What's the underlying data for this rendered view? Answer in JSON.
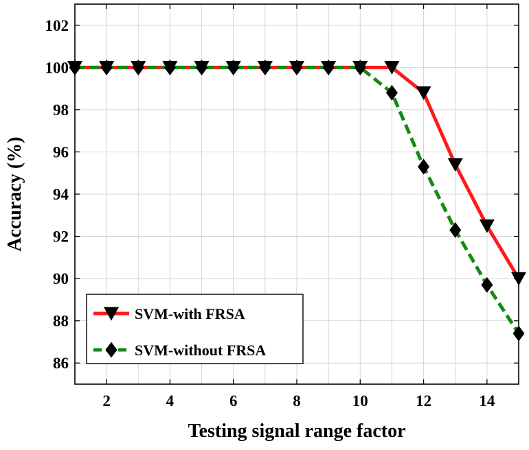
{
  "chart_data": {
    "type": "line",
    "title": "",
    "xlabel": "Testing signal range factor",
    "ylabel": "Accuracy (%)",
    "xlim": [
      1,
      15
    ],
    "ylim": [
      85,
      103
    ],
    "xticks": [
      2,
      4,
      6,
      8,
      10,
      12,
      14
    ],
    "yticks": [
      86,
      88,
      90,
      92,
      94,
      96,
      98,
      100,
      102
    ],
    "xtick_labels": [
      "2",
      "4",
      "6",
      "8",
      "10",
      "12",
      "14"
    ],
    "ytick_labels": [
      "86",
      "88",
      "90",
      "92",
      "94",
      "96",
      "98",
      "100",
      "102"
    ],
    "grid": true,
    "x": [
      1,
      2,
      3,
      4,
      5,
      6,
      7,
      8,
      9,
      10,
      11,
      12,
      13,
      14,
      15
    ],
    "series": [
      {
        "name": "SVM-with FRSA",
        "color": "#ff1a1a",
        "line_style": "solid",
        "marker": "triangle-down",
        "values": [
          100,
          100,
          100,
          100,
          100,
          100,
          100,
          100,
          100,
          100,
          100,
          98.8,
          95.4,
          92.5,
          90.0
        ]
      },
      {
        "name": "SVM-without FRSA",
        "color": "#138a13",
        "line_style": "dashed",
        "marker": "diamond",
        "values": [
          100,
          100,
          100,
          100,
          100,
          100,
          100,
          100,
          100,
          100,
          98.8,
          95.3,
          92.3,
          89.7,
          87.4
        ]
      }
    ],
    "legend_position": "bottom-left"
  }
}
